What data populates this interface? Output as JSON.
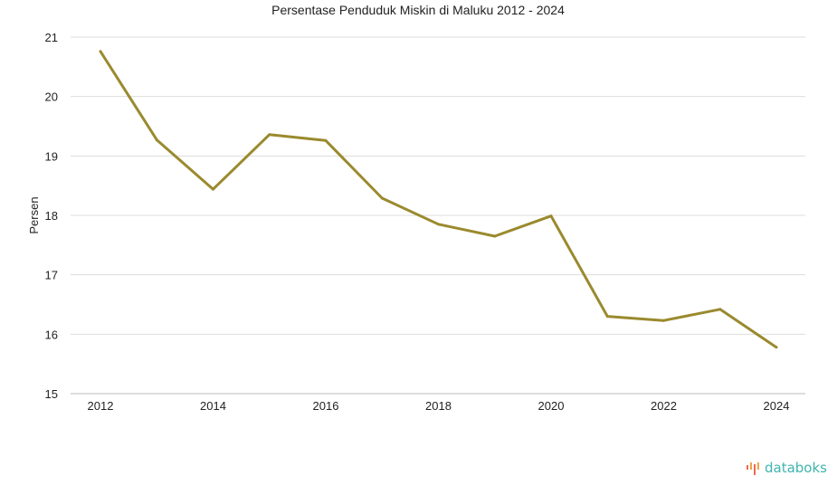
{
  "chart_data": {
    "type": "line",
    "title": "Persentase Penduduk Miskin di Maluku 2012 - 2024",
    "xlabel": "",
    "ylabel": "Persen",
    "x": [
      2012,
      2013,
      2014,
      2015,
      2016,
      2017,
      2018,
      2019,
      2020,
      2021,
      2022,
      2023,
      2024
    ],
    "series": [
      {
        "name": "Persentase Penduduk Miskin",
        "color": "#9a8a2e",
        "values": [
          20.76,
          19.27,
          18.44,
          19.36,
          19.26,
          18.29,
          17.85,
          17.65,
          17.99,
          16.3,
          16.23,
          16.42,
          15.78
        ]
      }
    ],
    "xticks": [
      "2012",
      "2014",
      "2016",
      "2018",
      "2020",
      "2022",
      "2024"
    ],
    "yticks": [
      "15",
      "16",
      "17",
      "18",
      "19",
      "20",
      "21"
    ],
    "ylim": [
      15,
      21
    ],
    "xlim": [
      2012,
      2024
    ],
    "grid": true
  },
  "branding": {
    "logo_text": "databoks",
    "color": "#3fb5ad",
    "accent": "#ef6b4f"
  }
}
